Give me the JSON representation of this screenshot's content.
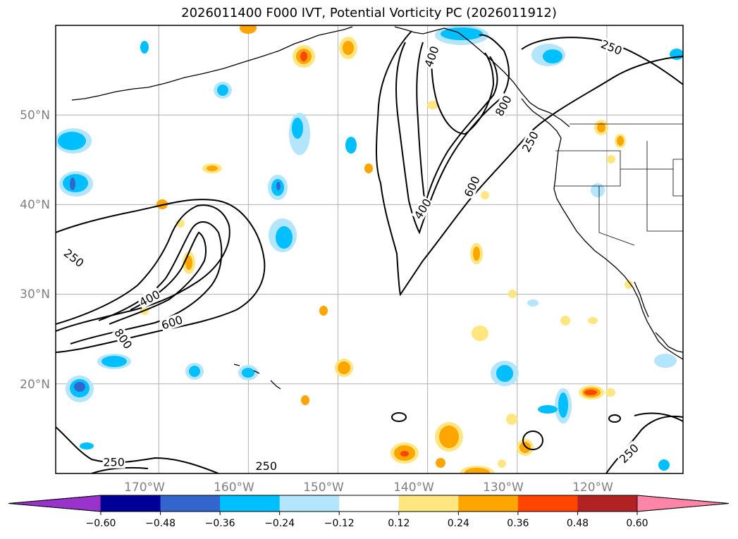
{
  "title": "2026011400 F000 IVT, Potential Vorticity PC (2026011912)",
  "map": {
    "lon_range": [
      -181.5,
      -111.5
    ],
    "lat_range": [
      10,
      60
    ],
    "lat_gridlines": [
      20,
      30,
      40,
      50
    ],
    "lon_gridlines": [
      -170,
      -160,
      -150,
      -140,
      -130,
      -120
    ],
    "lat_labels": [
      "20°N",
      "30°N",
      "40°N",
      "50°N"
    ],
    "lon_labels": [
      "170°W",
      "160°W",
      "150°W",
      "140°W",
      "130°W",
      "120°W"
    ]
  },
  "ivt_contour_labels": [
    {
      "text": "250",
      "lon": -119.5,
      "lat": 57.5,
      "rot": 22
    },
    {
      "text": "400",
      "lon": -139.5,
      "lat": 56.5,
      "rot": -70
    },
    {
      "text": "800",
      "lon": -131.5,
      "lat": 51.0,
      "rot": -62
    },
    {
      "text": "250",
      "lon": -128.5,
      "lat": 47.0,
      "rot": -62
    },
    {
      "text": "600",
      "lon": -135.0,
      "lat": 42.0,
      "rot": -65
    },
    {
      "text": "400",
      "lon": -140.5,
      "lat": 39.5,
      "rot": -58
    },
    {
      "text": "250",
      "lon": -179.5,
      "lat": 34.0,
      "rot": 38
    },
    {
      "text": "400",
      "lon": -171.0,
      "lat": 29.5,
      "rot": -28
    },
    {
      "text": "800",
      "lon": -174.0,
      "lat": 25.0,
      "rot": 55
    },
    {
      "text": "600",
      "lon": -168.5,
      "lat": 26.8,
      "rot": -18
    },
    {
      "text": "250",
      "lon": -175.0,
      "lat": 11.2,
      "rot": 0
    },
    {
      "text": "250",
      "lon": -158.0,
      "lat": 10.8,
      "rot": 0
    },
    {
      "text": "250",
      "lon": -117.5,
      "lat": 12.2,
      "rot": -45
    }
  ],
  "colorbar": {
    "ticks": [
      "-0.60",
      "-0.48",
      "-0.36",
      "-0.24",
      "-0.12",
      "0.12",
      "0.24",
      "0.36",
      "0.48",
      "0.60"
    ],
    "colors": [
      "#9933cc",
      "#000099",
      "#3366cc",
      "#00bfff",
      "#b3e5fc",
      "#ffffff",
      "#ffe680",
      "#ffa500",
      "#ff4500",
      "#b22222",
      "#ff85a8"
    ]
  }
}
